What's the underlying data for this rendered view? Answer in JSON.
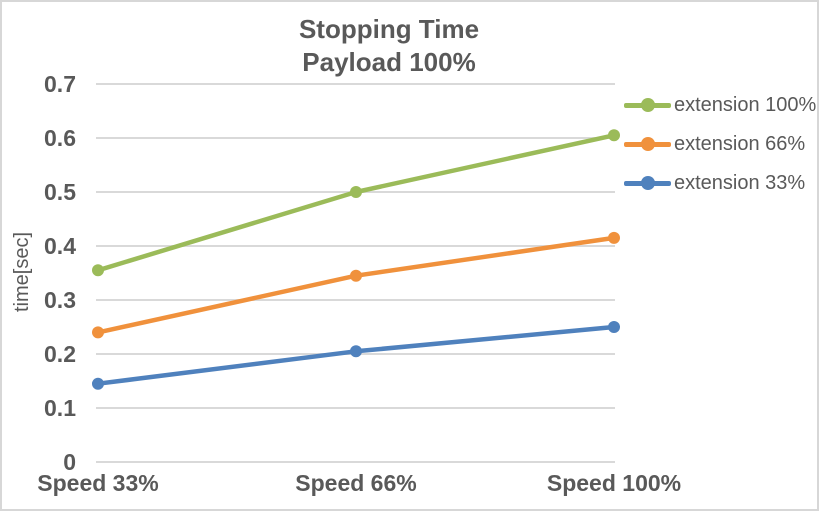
{
  "chart_data": {
    "type": "line",
    "title": "Stopping Time",
    "subtitle": "Payload 100%",
    "categories": [
      "Speed 33%",
      "Speed 66%",
      "Speed 100%"
    ],
    "series": [
      {
        "name": "extension 100%",
        "color": "#9BBB59",
        "values": [
          0.355,
          0.5,
          0.605
        ]
      },
      {
        "name": "extension 66%",
        "color": "#F0913C",
        "values": [
          0.24,
          0.345,
          0.415
        ]
      },
      {
        "name": "extension 33%",
        "color": "#4F81BD",
        "values": [
          0.145,
          0.205,
          0.25
        ]
      }
    ],
    "xlabel": "",
    "ylabel": "time[sec]",
    "ylim": [
      0,
      0.7
    ],
    "yticks": [
      0,
      0.1,
      0.2,
      0.3,
      0.4,
      0.5,
      0.6,
      0.7
    ],
    "grid": true,
    "legend_position": "right",
    "marker": "circle"
  },
  "colors": {
    "text": "#595959",
    "gridline": "#D9D9D9",
    "plot_background": "#FFFFFF",
    "frame_border": "#D7D7D7"
  }
}
